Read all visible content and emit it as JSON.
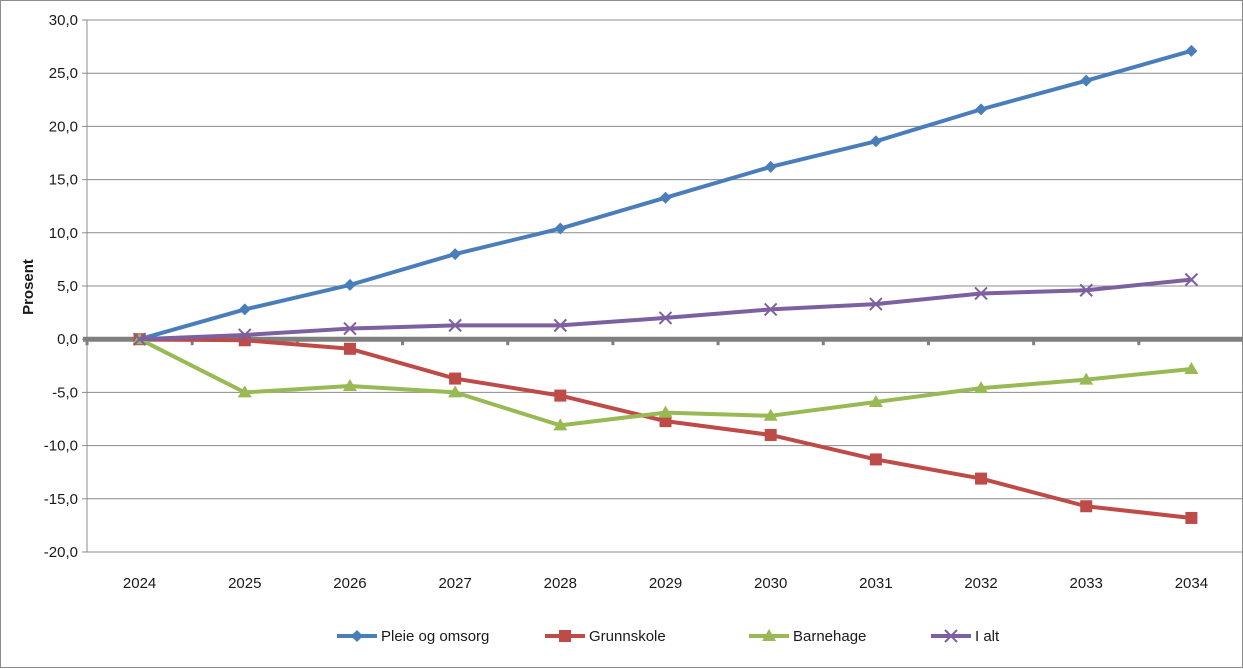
{
  "chart_data": {
    "type": "line",
    "title": "",
    "xlabel": "",
    "ylabel": "Prosent",
    "categories": [
      "2024",
      "2025",
      "2026",
      "2027",
      "2028",
      "2029",
      "2030",
      "2031",
      "2032",
      "2033",
      "2034"
    ],
    "ylim": [
      -20,
      30
    ],
    "yticks": [
      -20,
      -15,
      -10,
      -5,
      0,
      5,
      10,
      15,
      20,
      25,
      30
    ],
    "ytick_labels": [
      "-20,0",
      "-15,0",
      "-10,0",
      "-5,0",
      "0,0",
      "5,0",
      "10,0",
      "15,0",
      "20,0",
      "25,0",
      "30,0"
    ],
    "grid": "horizontal",
    "legend_position": "bottom",
    "series": [
      {
        "name": "Pleie og omsorg",
        "color": "#4a7ebb",
        "marker": "diamond",
        "values": [
          0.0,
          2.8,
          5.1,
          8.0,
          10.4,
          13.3,
          16.2,
          18.6,
          21.6,
          24.3,
          27.1
        ]
      },
      {
        "name": "Grunnskole",
        "color": "#be4b48",
        "marker": "square",
        "values": [
          0.0,
          -0.1,
          -0.9,
          -3.7,
          -5.3,
          -7.7,
          -9.0,
          -11.3,
          -13.1,
          -15.7,
          -16.8
        ]
      },
      {
        "name": "Barnehage",
        "color": "#98b954",
        "marker": "triangle",
        "values": [
          0.0,
          -5.0,
          -4.4,
          -5.0,
          -8.1,
          -6.9,
          -7.2,
          -5.9,
          -4.6,
          -3.8,
          -2.8
        ]
      },
      {
        "name": "I alt",
        "color": "#7d60a0",
        "marker": "x",
        "values": [
          0.0,
          0.4,
          1.0,
          1.3,
          1.3,
          2.0,
          2.8,
          3.3,
          4.3,
          4.6,
          5.6
        ]
      }
    ]
  }
}
